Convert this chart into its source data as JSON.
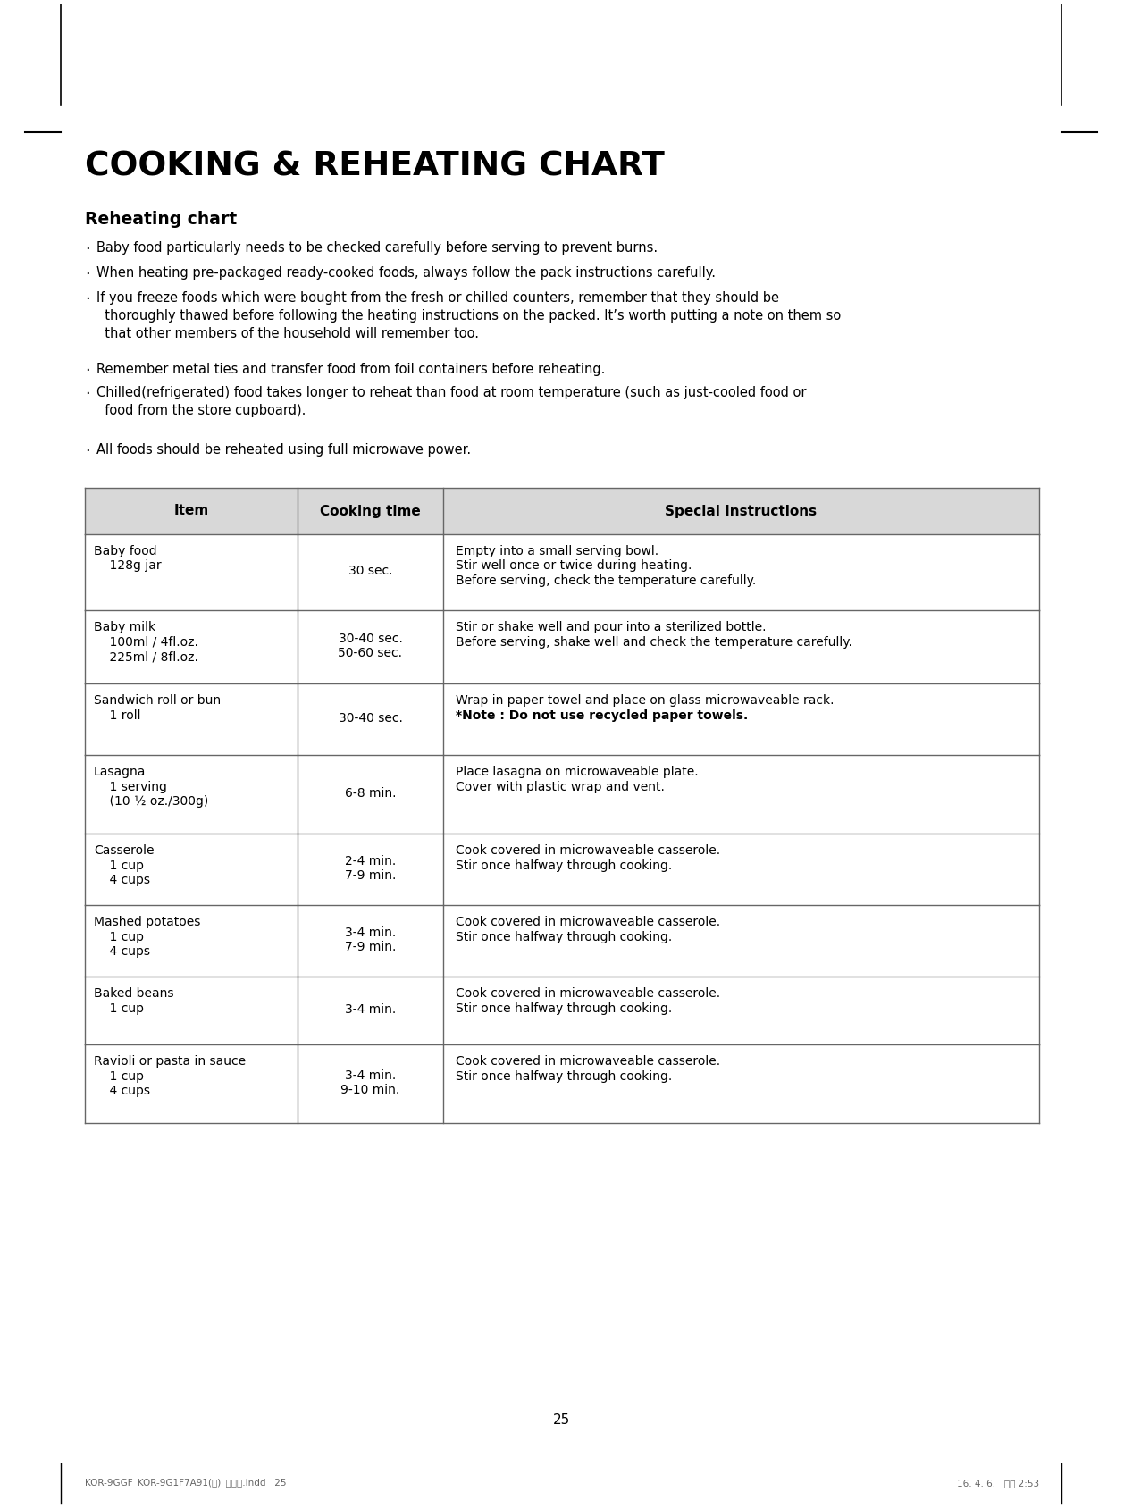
{
  "page_number": "25",
  "main_title": "COOKING & REHEATING CHART",
  "section_title": "Reheating chart",
  "bullets": [
    "Baby food particularly needs to be checked carefully before serving to prevent burns.",
    "When heating pre-packaged ready-cooked foods, always follow the pack instructions carefully.",
    "If you freeze foods which were bought from the fresh or chilled counters, remember that they should be\n  thoroughly thawed before following the heating instructions on the packed. It’s worth putting a note on them so\n  that other members of the household will remember too.",
    "Remember metal ties and transfer food from foil containers before reheating.",
    "Chilled(refrigerated) food takes longer to reheat than food at room temperature (such as just-cooled food or\n  food from the store cupboard).",
    "All foods should be reheated using full microwave power."
  ],
  "table_headers": [
    "Item",
    "Cooking time",
    "Special Instructions"
  ],
  "table_rows": [
    {
      "item_lines": [
        "Baby food",
        "    128g jar"
      ],
      "cooking_lines": [
        "30 sec."
      ],
      "instr_lines": [
        [
          "Empty into a small serving bowl.",
          false
        ],
        [
          "Stir well once or twice during heating.",
          false
        ],
        [
          "Before serving, check the temperature carefully.",
          false
        ]
      ]
    },
    {
      "item_lines": [
        "Baby milk",
        "    100ml / 4fl.oz.",
        "    225ml / 8fl.oz."
      ],
      "cooking_lines": [
        "30-40 sec.",
        "50-60 sec."
      ],
      "instr_lines": [
        [
          "Stir or shake well and pour into a sterilized bottle.",
          false
        ],
        [
          "Before serving, shake well and check the temperature carefully.",
          false
        ]
      ]
    },
    {
      "item_lines": [
        "Sandwich roll or bun",
        "    1 roll"
      ],
      "cooking_lines": [
        "30-40 sec."
      ],
      "instr_lines": [
        [
          "Wrap in paper towel and place on glass microwaveable rack.",
          false
        ],
        [
          "*Note : Do not use recycled paper towels.",
          true
        ]
      ]
    },
    {
      "item_lines": [
        "Lasagna",
        "    1 serving",
        "    (10 ½ oz./300g)"
      ],
      "cooking_lines": [
        "6-8 min."
      ],
      "instr_lines": [
        [
          "Place lasagna on microwaveable plate.",
          false
        ],
        [
          "Cover with plastic wrap and vent.",
          false
        ]
      ]
    },
    {
      "item_lines": [
        "Casserole",
        "    1 cup",
        "    4 cups"
      ],
      "cooking_lines": [
        "2-4 min.",
        "7-9 min."
      ],
      "instr_lines": [
        [
          "Cook covered in microwaveable casserole.",
          false
        ],
        [
          "Stir once halfway through cooking.",
          false
        ]
      ]
    },
    {
      "item_lines": [
        "Mashed potatoes",
        "    1 cup",
        "    4 cups"
      ],
      "cooking_lines": [
        "3-4 min.",
        "7-9 min."
      ],
      "instr_lines": [
        [
          "Cook covered in microwaveable casserole.",
          false
        ],
        [
          "Stir once halfway through cooking.",
          false
        ]
      ]
    },
    {
      "item_lines": [
        "Baked beans",
        "    1 cup"
      ],
      "cooking_lines": [
        "3-4 min."
      ],
      "instr_lines": [
        [
          "Cook covered in microwaveable casserole.",
          false
        ],
        [
          "Stir once halfway through cooking.",
          false
        ]
      ]
    },
    {
      "item_lines": [
        "Ravioli or pasta in sauce",
        "    1 cup",
        "    4 cups"
      ],
      "cooking_lines": [
        "3-4 min.",
        "9-10 min."
      ],
      "instr_lines": [
        [
          "Cook covered in microwaveable casserole.",
          false
        ],
        [
          "Stir once halfway through cooking.",
          false
        ]
      ]
    }
  ],
  "footer_left": "KOR-9GGF_KOR-9G1F7A91(영)_규격용.indd   25",
  "footer_right": "16. 4. 6.   오후 2:53",
  "bg_color": "#ffffff",
  "text_color": "#000000",
  "header_bg": "#d8d8d8",
  "table_border_color": "#666666"
}
